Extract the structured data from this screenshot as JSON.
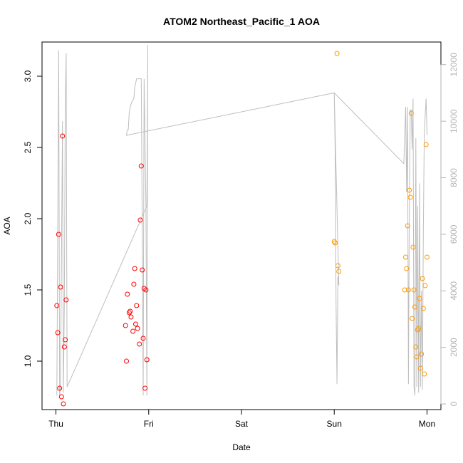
{
  "chart_data": {
    "type": "scatter",
    "title": "ATOM2 Northeast_Pacific_1 AOA",
    "xlabel": "Date",
    "ylabel": "AOA",
    "x_unit": "days since Thursday 00:00",
    "xlim": [
      -0.15,
      4.15
    ],
    "ylim": [
      0.66,
      3.24
    ],
    "x_ticks": [
      {
        "value": 0,
        "label": "Thu"
      },
      {
        "value": 1,
        "label": "Fri"
      },
      {
        "value": 2,
        "label": "Sat"
      },
      {
        "value": 3,
        "label": "Sun"
      },
      {
        "value": 4,
        "label": "Mon"
      }
    ],
    "y_ticks": [
      1.0,
      1.5,
      2.0,
      2.5,
      3.0
    ],
    "y2_ticks": [
      0,
      2000,
      4000,
      6000,
      8000,
      10000,
      12000
    ],
    "y2_lim": [
      -200,
      12800
    ],
    "colors": {
      "red": "#ff0000",
      "orange": "#ff9900",
      "line": "#bebebe"
    },
    "series": [
      {
        "color": "red",
        "points": [
          [
            0.01,
            1.39
          ],
          [
            0.02,
            1.2
          ],
          [
            0.03,
            1.89
          ],
          [
            0.04,
            0.81
          ],
          [
            0.05,
            1.52
          ],
          [
            0.06,
            0.75
          ],
          [
            0.07,
            2.58
          ],
          [
            0.08,
            0.7
          ],
          [
            0.09,
            1.1
          ],
          [
            0.1,
            1.15
          ],
          [
            0.11,
            1.43
          ],
          [
            0.75,
            1.25
          ],
          [
            0.76,
            1.0
          ],
          [
            0.77,
            1.47
          ],
          [
            0.79,
            1.34
          ],
          [
            0.8,
            1.35
          ],
          [
            0.81,
            1.31
          ],
          [
            0.83,
            1.21
          ],
          [
            0.84,
            1.54
          ],
          [
            0.85,
            1.65
          ],
          [
            0.86,
            1.26
          ],
          [
            0.87,
            1.39
          ],
          [
            0.88,
            1.23
          ],
          [
            0.9,
            1.12
          ],
          [
            0.91,
            1.99
          ],
          [
            0.92,
            2.37
          ],
          [
            0.93,
            1.64
          ],
          [
            0.94,
            1.16
          ],
          [
            0.95,
            1.51
          ],
          [
            0.96,
            0.81
          ],
          [
            0.97,
            1.5
          ],
          [
            0.98,
            1.01
          ]
        ]
      },
      {
        "color": "orange",
        "points": [
          [
            3.0,
            1.84
          ],
          [
            3.01,
            1.83
          ],
          [
            3.03,
            3.16
          ],
          [
            3.04,
            1.67
          ],
          [
            3.05,
            1.63
          ],
          [
            3.76,
            1.5
          ],
          [
            3.77,
            1.73
          ],
          [
            3.78,
            1.65
          ],
          [
            3.79,
            1.95
          ],
          [
            3.8,
            1.5
          ],
          [
            3.81,
            2.2
          ],
          [
            3.82,
            2.15
          ],
          [
            3.83,
            2.74
          ],
          [
            3.84,
            1.3
          ],
          [
            3.85,
            1.8
          ],
          [
            3.86,
            1.5
          ],
          [
            3.87,
            1.38
          ],
          [
            3.88,
            1.1
          ],
          [
            3.89,
            1.03
          ],
          [
            3.9,
            1.22
          ],
          [
            3.91,
            1.23
          ],
          [
            3.92,
            1.44
          ],
          [
            3.93,
            0.95
          ],
          [
            3.94,
            1.05
          ],
          [
            3.95,
            1.58
          ],
          [
            3.96,
            1.37
          ],
          [
            3.97,
            0.91
          ],
          [
            3.98,
            1.53
          ],
          [
            3.99,
            2.52
          ],
          [
            4.0,
            1.73
          ]
        ]
      }
    ],
    "line_series": {
      "axis": "right",
      "points": [
        [
          0.01,
          300
        ],
        [
          0.03,
          12500
        ],
        [
          0.04,
          300
        ],
        [
          0.05,
          600
        ],
        [
          0.07,
          10000
        ],
        [
          0.08,
          400
        ],
        [
          0.09,
          3500
        ],
        [
          0.1,
          10500
        ],
        [
          0.11,
          12400
        ],
        [
          0.12,
          600
        ],
        [
          0.98,
          7000
        ],
        [
          0.99,
          12700
        ],
        [
          0.98,
          300
        ],
        [
          0.97,
          7000
        ],
        [
          0.95,
          11500
        ],
        [
          0.94,
          300
        ],
        [
          0.93,
          6000
        ],
        [
          0.92,
          11500
        ],
        [
          0.9,
          11500
        ],
        [
          0.87,
          11500
        ],
        [
          0.85,
          11200
        ],
        [
          0.84,
          10800
        ],
        [
          0.82,
          10700
        ],
        [
          0.8,
          10500
        ],
        [
          0.79,
          10300
        ],
        [
          0.78,
          9700
        ],
        [
          0.77,
          9700
        ],
        [
          0.76,
          9500
        ],
        [
          3.0,
          11000
        ],
        [
          3.01,
          9000
        ],
        [
          3.02,
          3500
        ],
        [
          3.03,
          700
        ],
        [
          3.04,
          4500
        ],
        [
          3.05,
          4200
        ],
        [
          3.0,
          11000
        ],
        [
          3.75,
          8500
        ],
        [
          3.77,
          10500
        ],
        [
          3.78,
          7500
        ],
        [
          3.79,
          10500
        ],
        [
          3.8,
          700
        ],
        [
          3.81,
          7000
        ],
        [
          3.82,
          10400
        ],
        [
          3.83,
          10400
        ],
        [
          3.84,
          9000
        ],
        [
          3.85,
          10800
        ],
        [
          3.86,
          600
        ],
        [
          3.87,
          300
        ],
        [
          3.88,
          9400
        ],
        [
          3.89,
          600
        ],
        [
          3.9,
          7000
        ],
        [
          3.91,
          400
        ],
        [
          3.92,
          7800
        ],
        [
          3.93,
          600
        ],
        [
          3.94,
          4000
        ],
        [
          3.95,
          500
        ],
        [
          3.96,
          6000
        ],
        [
          3.97,
          9500
        ],
        [
          3.98,
          10200
        ],
        [
          3.99,
          10800
        ],
        [
          4.0,
          9500
        ]
      ]
    },
    "line_series_note": "traced from figure; ordering reconstructs connecting segments"
  }
}
